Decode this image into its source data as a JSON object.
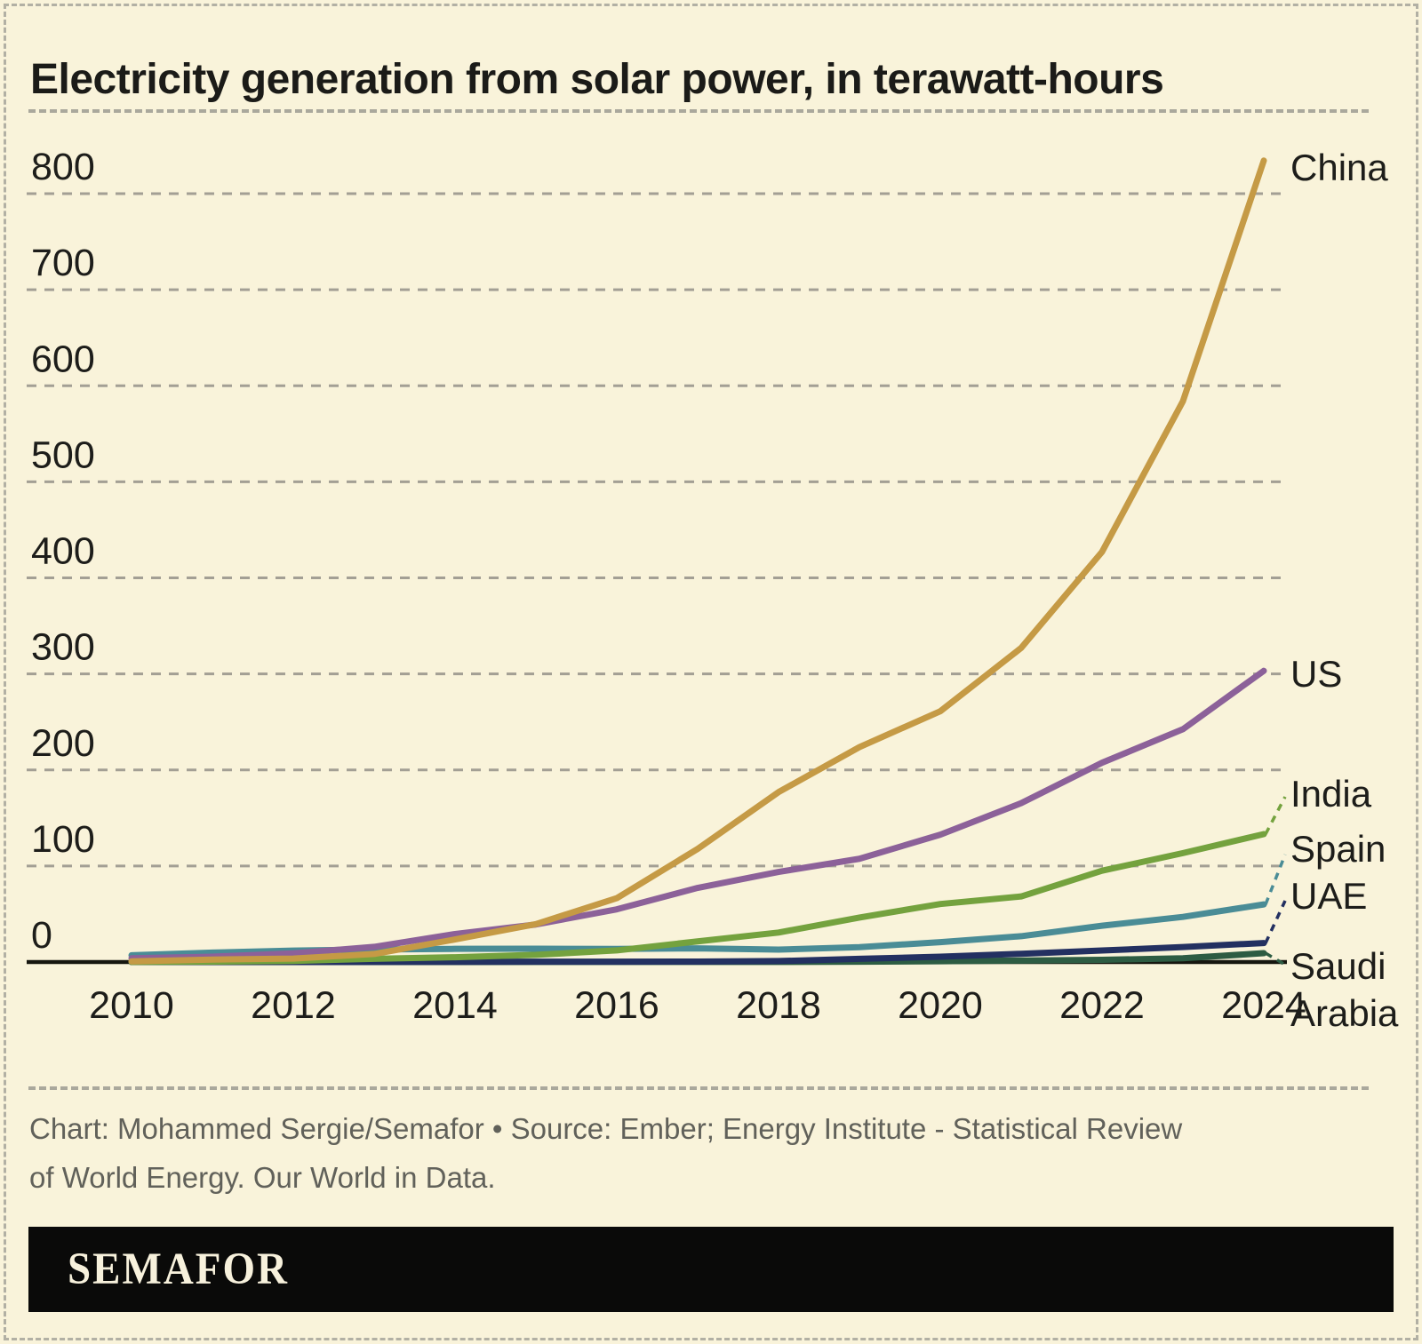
{
  "header": {
    "title": "Electricity generation from solar power, in terawatt-hours"
  },
  "chart_data": {
    "type": "line",
    "title": "Electricity generation from solar power, in terawatt-hours",
    "unit": "terawatt-hours",
    "x": [
      2010,
      2011,
      2012,
      2013,
      2014,
      2015,
      2016,
      2017,
      2018,
      2019,
      2020,
      2021,
      2022,
      2023,
      2024
    ],
    "xticks": [
      2010,
      2012,
      2014,
      2016,
      2018,
      2020,
      2022,
      2024
    ],
    "yticks": [
      0,
      100,
      200,
      300,
      400,
      500,
      600,
      700,
      800
    ],
    "ylim": [
      0,
      884
    ],
    "grid": "dashed-horizontal",
    "legend_position": "direct-right-labels",
    "series": [
      {
        "name": "Saudi Arabia",
        "label_lines": [
          "Saudi",
          "Arabia"
        ],
        "color": "#2d5c43",
        "values": [
          0.0,
          0.0,
          0.0,
          0.0,
          0.0,
          0.1,
          0.1,
          0.1,
          0.1,
          0.4,
          0.8,
          1.5,
          2.3,
          3.9,
          9.2
        ]
      },
      {
        "name": "UAE",
        "label_lines": [
          "UAE"
        ],
        "color": "#233061",
        "values": [
          0.0,
          0.0,
          0.0,
          0.1,
          0.2,
          0.3,
          0.3,
          0.5,
          1.0,
          3.3,
          5.5,
          8.6,
          12.0,
          15.6,
          19.8
        ]
      },
      {
        "name": "Spain",
        "label_lines": [
          "Spain"
        ],
        "color": "#4a8c96",
        "values": [
          7.0,
          9.8,
          11.9,
          13.1,
          13.7,
          13.9,
          13.6,
          14.2,
          12.9,
          15.5,
          20.7,
          26.9,
          37.8,
          47.0,
          60.0
        ]
      },
      {
        "name": "India",
        "label_lines": [
          "India"
        ],
        "color": "#74a23e",
        "values": [
          0.1,
          0.5,
          1.2,
          3.4,
          5.0,
          7.5,
          12.1,
          21.5,
          30.7,
          46.3,
          60.4,
          68.3,
          95.1,
          113.4,
          133.2
        ]
      },
      {
        "name": "US",
        "label_lines": [
          "US"
        ],
        "color": "#8c6199",
        "values": [
          3.9,
          5.6,
          9.0,
          15.8,
          29.2,
          39.1,
          54.9,
          77.2,
          93.8,
          107.5,
          132.6,
          165.4,
          207.5,
          242.4,
          303.2
        ]
      },
      {
        "name": "China",
        "label_lines": [
          "China"
        ],
        "color": "#c59a45",
        "values": [
          0.7,
          2.6,
          3.6,
          8.4,
          23.5,
          39.5,
          66.5,
          117.8,
          176.9,
          223.8,
          261.1,
          327.0,
          427.1,
          583.9,
          834.4
        ]
      }
    ]
  },
  "footer": {
    "caption_line1": "Chart: Mohammed Sergie/Semafor • Source: Ember; Energy Institute - Statistical Review",
    "caption_line2": "of World Energy. Our World in Data."
  },
  "brand": {
    "wordmark": "SEMAFOR"
  },
  "colors": {
    "background": "#f9f3da",
    "gridline": "#a39f94",
    "axis": "#16160f",
    "text": "#1d1d1a",
    "caption": "#61615a",
    "brand_bar": "#0a0a09",
    "brand_text": "#f7f1dc"
  }
}
